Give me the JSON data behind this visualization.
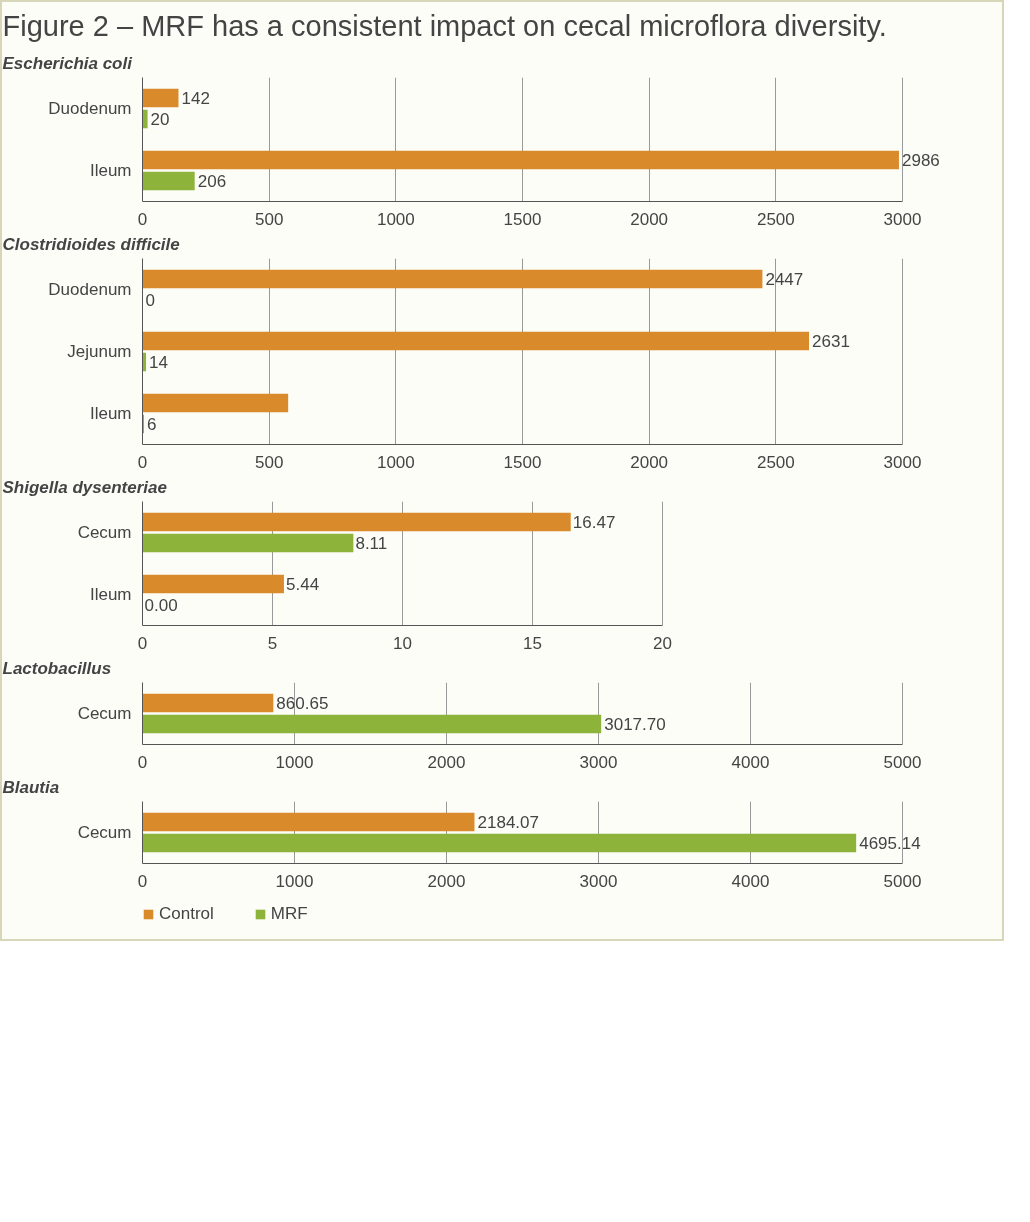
{
  "chart_data": [
    {
      "type": "bar",
      "orientation": "horizontal",
      "title": "Figure 2 – MRF has a consistent impact on cecal microflora diversity.",
      "subtitle": "Escherichia coli",
      "categories": [
        "Duodenum",
        "Ileum"
      ],
      "xlim": [
        0,
        3000
      ],
      "xticks": [
        0,
        500,
        1000,
        1500,
        2000,
        2500,
        3000
      ],
      "grid": "x",
      "legend": false,
      "series": [
        {
          "color": "#d98a2b",
          "values": [
            142,
            2986
          ],
          "value_labels": [
            "142",
            "2986"
          ]
        },
        {
          "color": "#8db33a",
          "values": [
            20,
            206
          ],
          "value_labels": [
            "20",
            "206"
          ]
        }
      ]
    },
    {
      "type": "bar",
      "orientation": "horizontal",
      "title": "Clostridioides difficile",
      "categories": [
        "Duodenum",
        "Jejunum",
        "Ileum"
      ],
      "xlim": [
        0,
        3000
      ],
      "xticks": [
        0,
        500,
        1000,
        1500,
        2000,
        2500,
        3000
      ],
      "grid": "x",
      "legend": false,
      "series": [
        {
          "color": "#d98a2b",
          "values": [
            2447,
            2631,
            575
          ],
          "value_labels": [
            "2447",
            "2631",
            null
          ]
        },
        {
          "color": "#8db33a",
          "values": [
            0,
            14,
            6
          ],
          "value_labels": [
            "0",
            "14",
            "6"
          ]
        }
      ]
    },
    {
      "type": "bar",
      "orientation": "horizontal",
      "title": "Shigella dysenteriae",
      "categories": [
        "Cecum",
        "Ileum"
      ],
      "xlim": [
        0,
        20
      ],
      "xticks": [
        0,
        5,
        10,
        15,
        20
      ],
      "grid": "x",
      "legend": false,
      "series": [
        {
          "color": "#d98a2b",
          "values": [
            16.47,
            5.44
          ],
          "value_labels": [
            "16.47",
            "5.44"
          ]
        },
        {
          "color": "#8db33a",
          "values": [
            8.11,
            0.0
          ],
          "value_labels": [
            "8.11",
            "0.00"
          ]
        }
      ]
    },
    {
      "type": "bar",
      "orientation": "horizontal",
      "title": "Lactobacillus",
      "categories": [
        "Cecum"
      ],
      "xlim": [
        0,
        5000
      ],
      "xticks": [
        0,
        1000,
        2000,
        3000,
        4000,
        5000
      ],
      "grid": "x",
      "legend": false,
      "series": [
        {
          "color": "#d98a2b",
          "values": [
            860.65
          ],
          "value_labels": [
            "860.65"
          ]
        },
        {
          "color": "#8db33a",
          "values": [
            3017.7
          ],
          "value_labels": [
            "3017.70"
          ]
        }
      ]
    },
    {
      "type": "bar",
      "orientation": "horizontal",
      "title": "Blautia",
      "categories": [
        "Cecum"
      ],
      "xlim": [
        0,
        5000
      ],
      "xticks": [
        0,
        1000,
        2000,
        3000,
        4000,
        5000
      ],
      "grid": "x",
      "legend": "bottom",
      "series": [
        {
          "name": "Control",
          "color": "#d98a2b",
          "values": [
            2184.07
          ],
          "value_labels": [
            "2184.07"
          ]
        },
        {
          "name": "MRF",
          "color": "#8db33a",
          "values": [
            4695.14
          ],
          "value_labels": [
            "4695.14"
          ]
        }
      ]
    }
  ]
}
